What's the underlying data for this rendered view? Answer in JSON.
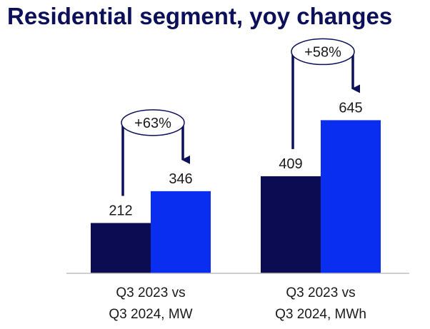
{
  "chart_data": {
    "type": "bar",
    "title": "Residential segment, yoy changes",
    "colors": {
      "q3_2023": "#0c0c52",
      "q3_2024": "#0a2ef0",
      "arrow": "#0c0f59",
      "axis": "#bfbfbf"
    },
    "groups": [
      {
        "category_lines": [
          "Q3 2023 vs",
          "Q3 2024, MW"
        ],
        "values": [
          212,
          346
        ],
        "change": "+63%"
      },
      {
        "category_lines": [
          "Q3 2023 vs",
          "Q3 2024, MWh"
        ],
        "values": [
          409,
          645
        ],
        "change": "+58%"
      }
    ],
    "ylim": [
      0,
      860
    ],
    "grid": false,
    "legend": "none"
  }
}
